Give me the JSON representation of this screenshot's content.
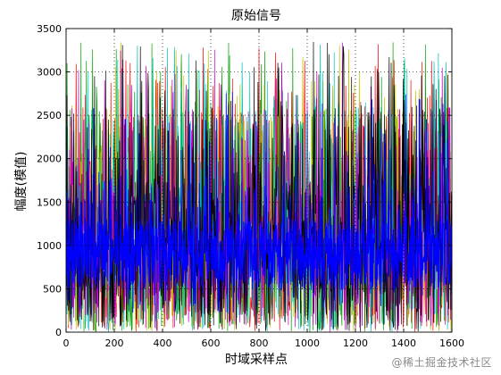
{
  "chart_data": {
    "type": "line",
    "title": "原始信号",
    "xlabel": "时域采样点",
    "ylabel": "幅度(模值)",
    "xlim": [
      0,
      1600
    ],
    "ylim": [
      0,
      3500
    ],
    "x_ticks": [
      0,
      200,
      400,
      600,
      800,
      1000,
      1200,
      1400,
      1600
    ],
    "y_ticks": [
      0,
      500,
      1000,
      1500,
      2000,
      2500,
      3000,
      3500
    ],
    "x_tick_labels": [
      "0",
      "200",
      "400",
      "600",
      "800",
      "1000",
      "1200",
      "1400",
      "1600"
    ],
    "y_tick_labels": [
      "0",
      "500",
      "1000",
      "1500",
      "2000",
      "2500",
      "3000",
      "3500"
    ],
    "grid": true,
    "grid_style": "dotted",
    "series_colors": [
      "#ff0000",
      "#00a000",
      "#c0c000",
      "#00c0c0",
      "#c000c0",
      "#000000",
      "#0000ff"
    ],
    "dense_band_series_color": "#0000ff",
    "dense_band_range": [
      500,
      1300
    ],
    "typical_range": [
      0,
      2500
    ],
    "max_peak": 3350
  },
  "watermark": "@稀土掘金技术社区"
}
